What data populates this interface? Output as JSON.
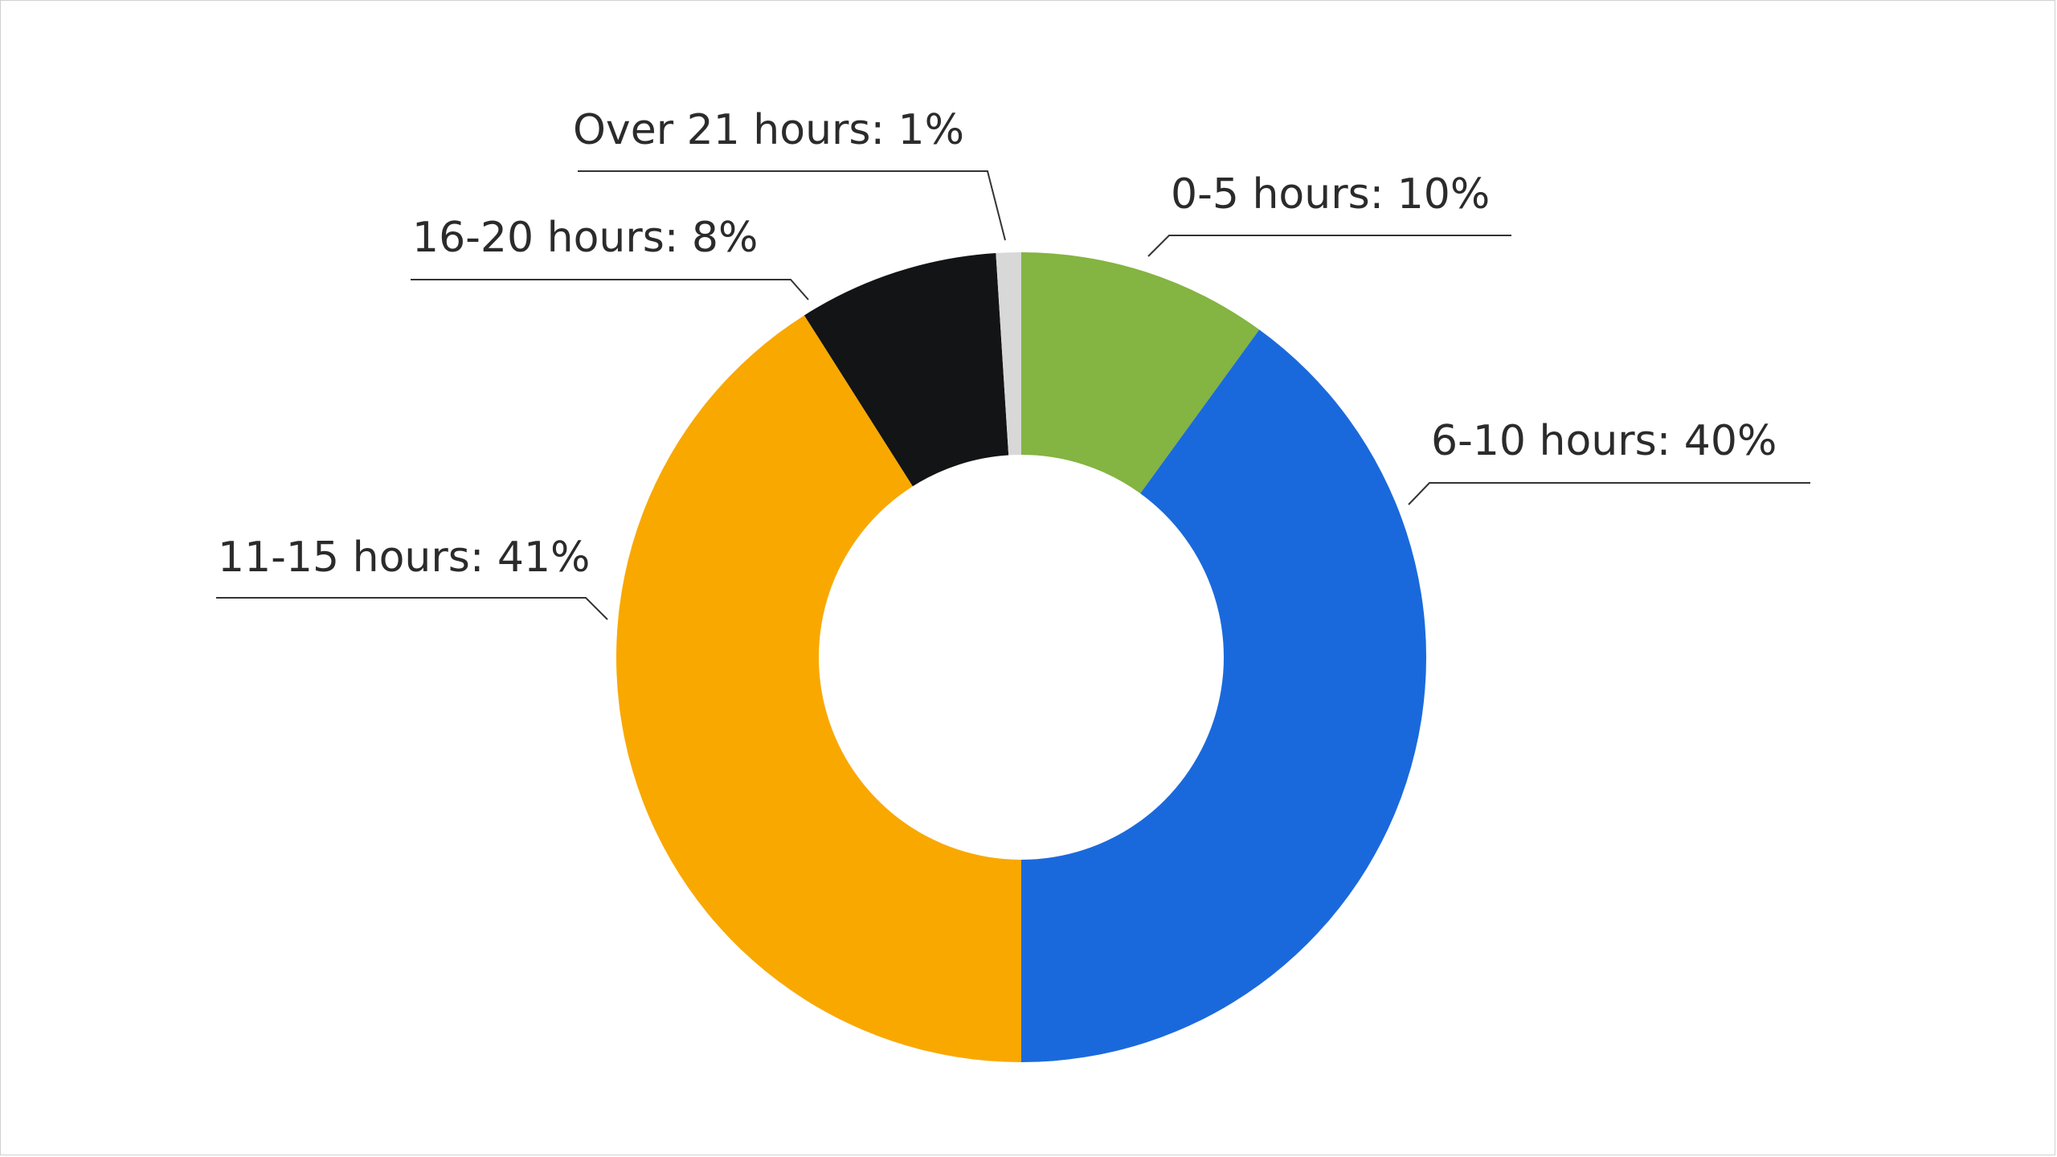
{
  "chart_data": {
    "type": "pie",
    "variant": "donut",
    "title": "",
    "slices": [
      {
        "label": "0-5 hours",
        "value": 10,
        "display": "0-5 hours: 10%",
        "color": "#84b441"
      },
      {
        "label": "6-10 hours",
        "value": 40,
        "display": "6-10 hours: 40%",
        "color": "#1a69dc"
      },
      {
        "label": "11-15 hours",
        "value": 41,
        "display": "11-15 hours: 41%",
        "color": "#f9a800"
      },
      {
        "label": "16-20 hours",
        "value": 8,
        "display": "16-20 hours: 8%",
        "color": "#131416"
      },
      {
        "label": "Over 21 hours",
        "value": 1,
        "display": "Over 21 hours: 1%",
        "color": "#d8d8d8"
      }
    ],
    "legend": "none",
    "label_style": "callout"
  }
}
